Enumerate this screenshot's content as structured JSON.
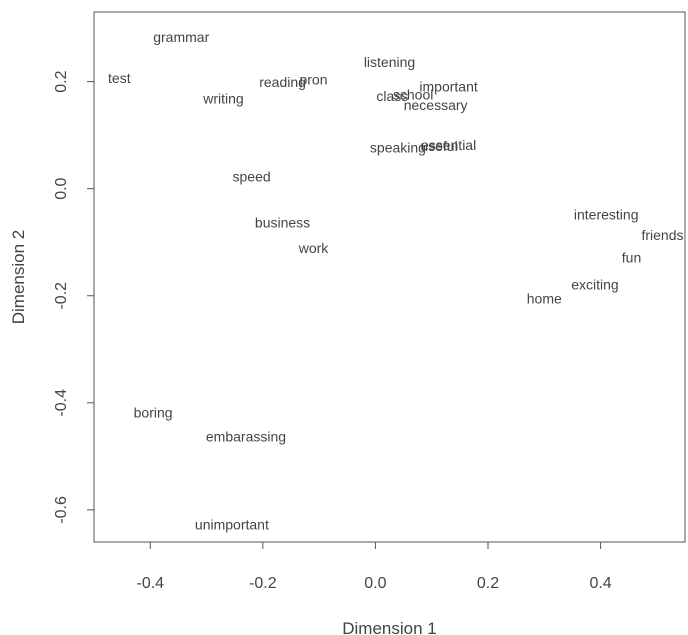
{
  "chart_data": {
    "type": "scatter",
    "title": "",
    "xlabel": "Dimension 1",
    "ylabel": "Dimension 2",
    "xlim": [
      -0.5,
      0.55
    ],
    "ylim": [
      -0.66,
      0.33
    ],
    "xticks": [
      {
        "value": -0.4,
        "label": "-0.4"
      },
      {
        "value": -0.2,
        "label": "-0.2"
      },
      {
        "value": 0.0,
        "label": "0.0"
      },
      {
        "value": 0.2,
        "label": "0.2"
      },
      {
        "value": 0.4,
        "label": "0.4"
      }
    ],
    "yticks": [
      {
        "value": -0.6,
        "label": "-0.6"
      },
      {
        "value": -0.4,
        "label": "-0.4"
      },
      {
        "value": -0.2,
        "label": "-0.2"
      },
      {
        "value": 0.0,
        "label": "0.0"
      },
      {
        "value": 0.2,
        "label": "0.2"
      }
    ],
    "grid": false,
    "text_color": "#444444",
    "frame_color": "#555555",
    "points": [
      {
        "label": "grammar",
        "x": -0.345,
        "y": 0.283
      },
      {
        "label": "test",
        "x": -0.455,
        "y": 0.207
      },
      {
        "label": "reading",
        "x": -0.165,
        "y": 0.199
      },
      {
        "label": "pron",
        "x": -0.11,
        "y": 0.204
      },
      {
        "label": "writing",
        "x": -0.27,
        "y": 0.168
      },
      {
        "label": "listening",
        "x": 0.025,
        "y": 0.237
      },
      {
        "label": "important",
        "x": 0.13,
        "y": 0.191
      },
      {
        "label": "class",
        "x": 0.03,
        "y": 0.173
      },
      {
        "label": "school",
        "x": 0.067,
        "y": 0.176
      },
      {
        "label": "necessary",
        "x": 0.107,
        "y": 0.156
      },
      {
        "label": "speaking",
        "x": 0.04,
        "y": 0.077
      },
      {
        "label": "essential",
        "x": 0.13,
        "y": 0.082
      },
      {
        "label": "useful",
        "x": 0.113,
        "y": 0.08
      },
      {
        "label": "speed",
        "x": -0.22,
        "y": 0.023
      },
      {
        "label": "business",
        "x": -0.165,
        "y": -0.063
      },
      {
        "label": "work",
        "x": -0.11,
        "y": -0.111
      },
      {
        "label": "interesting",
        "x": 0.41,
        "y": -0.048
      },
      {
        "label": "friends",
        "x": 0.51,
        "y": -0.087
      },
      {
        "label": "fun",
        "x": 0.455,
        "y": -0.129
      },
      {
        "label": "exciting",
        "x": 0.39,
        "y": -0.179
      },
      {
        "label": "home",
        "x": 0.3,
        "y": -0.205
      },
      {
        "label": "boring",
        "x": -0.395,
        "y": -0.418
      },
      {
        "label": "embarassing",
        "x": -0.23,
        "y": -0.463
      },
      {
        "label": "unimportant",
        "x": -0.255,
        "y": -0.627
      }
    ]
  }
}
